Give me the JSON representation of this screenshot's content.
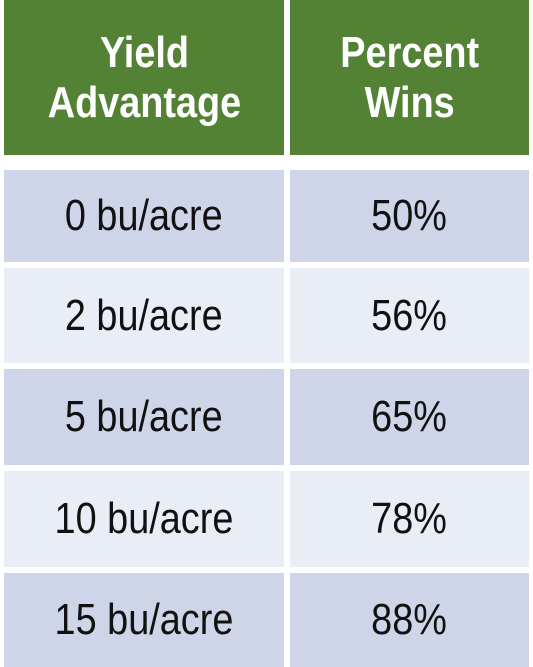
{
  "chart_data": {
    "type": "table",
    "columns": [
      "Yield\nAdvantage",
      "Percent\nWins"
    ],
    "rows": [
      [
        "0 bu/acre",
        "50%"
      ],
      [
        "2 bu/acre",
        "56%"
      ],
      [
        "5 bu/acre",
        "65%"
      ],
      [
        "10 bu/acre",
        "78%"
      ],
      [
        "15 bu/acre",
        "88%"
      ]
    ]
  },
  "colors": {
    "header_bg": "#548235",
    "header_text": "#ffffff",
    "row_dark": "#cfd5e8",
    "row_light": "#e9eef6",
    "body_text": "#111111"
  }
}
